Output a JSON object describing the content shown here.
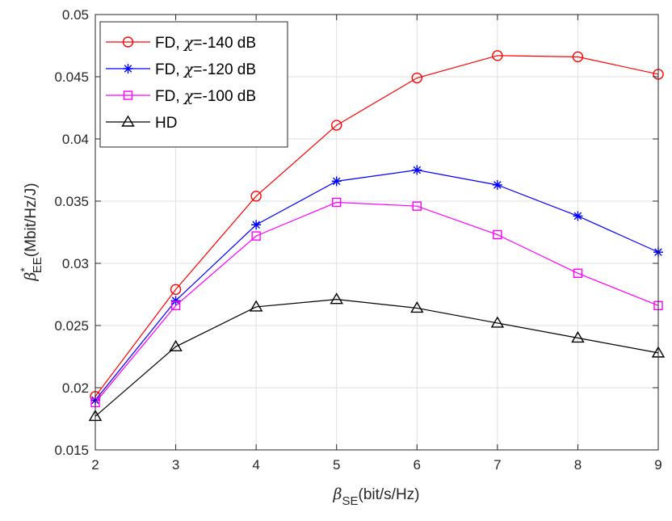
{
  "chart_data": {
    "type": "line",
    "title": "",
    "x": [
      2,
      3,
      4,
      5,
      6,
      7,
      8,
      9
    ],
    "xlim": [
      2,
      9
    ],
    "ylim": [
      0.015,
      0.05
    ],
    "xticks": [
      "2",
      "3",
      "4",
      "5",
      "6",
      "7",
      "8",
      "9"
    ],
    "yticks": [
      "0.015",
      "0.02",
      "0.025",
      "0.03",
      "0.035",
      "0.04",
      "0.045",
      "0.05"
    ],
    "xlabel": {
      "symbol": "β",
      "subscript": "SE",
      "unit": "(bit/s/Hz)"
    },
    "ylabel": {
      "symbol": "β",
      "superscript": "*",
      "subscript": "EE",
      "unit": "(Mbit/Hz/J)"
    },
    "grid": true,
    "legend_position": "top-left",
    "series": [
      {
        "label_pre": "FD, ",
        "label_sym": "χ",
        "label_post": "=-140 dB",
        "color": "#ff0000",
        "marker": "circle",
        "values": [
          0.0193,
          0.0279,
          0.0354,
          0.0411,
          0.0449,
          0.0467,
          0.0466,
          0.0452
        ]
      },
      {
        "label_pre": "FD, ",
        "label_sym": "χ",
        "label_post": "=-120 dB",
        "color": "#0000ff",
        "marker": "asterisk",
        "values": [
          0.019,
          0.027,
          0.0331,
          0.0366,
          0.0375,
          0.0363,
          0.0338,
          0.0309
        ]
      },
      {
        "label_pre": "FD, ",
        "label_sym": "χ",
        "label_post": "=-100 dB",
        "color": "#ff00ff",
        "marker": "square",
        "values": [
          0.0188,
          0.0266,
          0.0322,
          0.0349,
          0.0346,
          0.0323,
          0.0292,
          0.0266
        ]
      },
      {
        "label_pre": "HD",
        "label_sym": "",
        "label_post": "",
        "color": "#000000",
        "marker": "triangle",
        "values": [
          0.0177,
          0.0233,
          0.0265,
          0.0271,
          0.0264,
          0.0252,
          0.024,
          0.0228
        ]
      }
    ]
  }
}
